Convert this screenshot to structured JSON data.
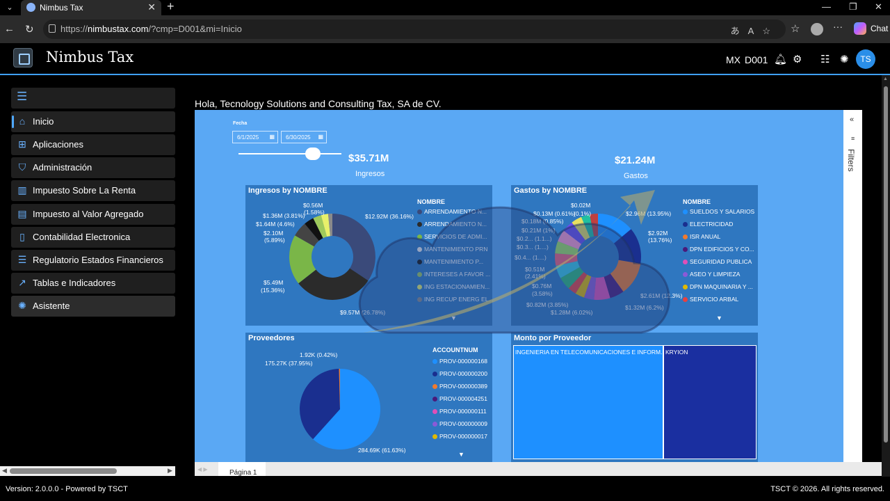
{
  "browser": {
    "tab_title": "Nimbus Tax",
    "url_prefix": "https://",
    "url_host": "nimbustax.com",
    "url_path": "/?cmp=D001&mi=Inicio",
    "chat_label": "Chat"
  },
  "app": {
    "title": "Nimbus Tax",
    "country": "MX",
    "company_code": "D001",
    "avatar_initials": "TS",
    "accent_color": "#3fa0ff"
  },
  "sidebar": {
    "items": [
      {
        "label": "Inicio",
        "icon": "home-icon"
      },
      {
        "label": "Aplicaciones",
        "icon": "apps-icon"
      },
      {
        "label": "Administración",
        "icon": "shield-icon"
      },
      {
        "label": "Impuesto Sobre La Renta",
        "icon": "library-icon"
      },
      {
        "label": "Impuesto al Valor Agregado",
        "icon": "document-icon"
      },
      {
        "label": "Contabilidad Electronica",
        "icon": "book-icon"
      },
      {
        "label": "Regulatorio Estados Financieros",
        "icon": "report-icon"
      },
      {
        "label": "Tablas e Indicadores",
        "icon": "chart-icon"
      },
      {
        "label": "Asistente",
        "icon": "assistant-icon"
      }
    ]
  },
  "main": {
    "greeting": "Hola, Tecnology Solutions and Consulting Tax, SA de CV.",
    "filters_label": "Filters",
    "page_tab": "Página 1"
  },
  "report": {
    "fecha_label": "Fecha",
    "date_from": "6/1/2025",
    "date_to": "6/30/2025",
    "kpi_ingresos_value": "$35.71M",
    "kpi_ingresos_label": "Ingresos",
    "kpi_gastos_value": "$21.24M",
    "kpi_gastos_label": "Gastos",
    "ingresos_title": "Ingresos by NOMBRE",
    "gastos_title": "Gastos by NOMBRE",
    "proveedores_title": "Proveedores",
    "monto_title": "Monto por Proveedor",
    "legend_nombre": "NOMBRE",
    "legend_account": "ACCOUNTNUM",
    "ingresos_legend": [
      {
        "label": "ARRENDAMIENTO N...",
        "color": "#3a4a7a"
      },
      {
        "label": "ARRENDAMIENTO N...",
        "color": "#2b2b2b"
      },
      {
        "label": "SERVICIOS DE ADMI...",
        "color": "#7ab648"
      },
      {
        "label": "MANTENIMIENTO PRN",
        "color": "#f1f1f1"
      },
      {
        "label": "MANTENIMIENTO P...",
        "color": "#111111"
      },
      {
        "label": "INTERESES A FAVOR ...",
        "color": "#9fc95b"
      },
      {
        "label": "ING ESTACIONAMIEN...",
        "color": "#e8f06a"
      },
      {
        "label": "ING RECUP ENERG EL...",
        "color": "#8a8a8a"
      }
    ],
    "ingresos_labels": [
      "$12.92M (36.16%)",
      "$9.57M (26.78%)",
      "$5.49M",
      "(15.36%)",
      "$2.10M",
      "(5.89%)",
      "$1.64M (4.6%)",
      "$1.36M (3.81%)",
      "$0.56M",
      "(1.58%)"
    ],
    "gastos_legend": [
      {
        "label": "SUELDOS Y SALARIOS",
        "color": "#1e90ff"
      },
      {
        "label": "ELECTRICIDAD",
        "color": "#1a2f8f"
      },
      {
        "label": "ISR ANUAL",
        "color": "#ef7a2e"
      },
      {
        "label": "DPN EDIFICIOS Y CO...",
        "color": "#4a1a7a"
      },
      {
        "label": "SEGURIDAD PUBLICA",
        "color": "#e04fb8"
      },
      {
        "label": "ASEO Y LIMPIEZA",
        "color": "#8a5ad8"
      },
      {
        "label": "DPN MAQUINARIA Y ...",
        "color": "#e0b800"
      },
      {
        "label": "SERVICIO ARBAL",
        "color": "#e84040"
      }
    ],
    "gastos_labels": [
      "$2.96M (13.95%)",
      "$2.92M",
      "(13.76%)",
      "$2.61M (12.3%)",
      "$1.32M (6.2%)",
      "$1.28M (6.02%)",
      "$0.82M (3.85%)",
      "$0.76M",
      "(3.58%)",
      "$0.51M",
      "(2.41%)",
      "$0.4... (1....)",
      "$0.3... (1....)",
      "$0.2... (1.1...)",
      "$0.21M (1%)",
      "$0.18M (0.85%)",
      "$0.13M (0.61%)",
      "(0.1%)",
      "$0.02M"
    ],
    "proveedores_legend": [
      {
        "label": "PROV-000000168",
        "color": "#1e90ff"
      },
      {
        "label": "PROV-000000200",
        "color": "#1a2f8f"
      },
      {
        "label": "PROV-000000389",
        "color": "#ef7a2e"
      },
      {
        "label": "PROV-000004251",
        "color": "#4a1a7a"
      },
      {
        "label": "PROV-000000111",
        "color": "#e04fb8"
      },
      {
        "label": "PROV-000000009",
        "color": "#8a5ad8"
      },
      {
        "label": "PROV-000000017",
        "color": "#e0b800"
      }
    ],
    "proveedores_labels": [
      "1.92K (0.42%)",
      "175.27K (37.95%)",
      "284.69K (61.63%)"
    ],
    "treemap": [
      {
        "label": "INGENIERIA EN TELECOMUNICACIONES E INFORM...",
        "color": "#1e90ff"
      },
      {
        "label": "KRYION",
        "color": "#1a2fa0"
      }
    ]
  },
  "footer": {
    "version": "Version: 2.0.0.0  -  Powered by TSCT",
    "copyright": "TSCT © 2026. All rights reserved."
  }
}
